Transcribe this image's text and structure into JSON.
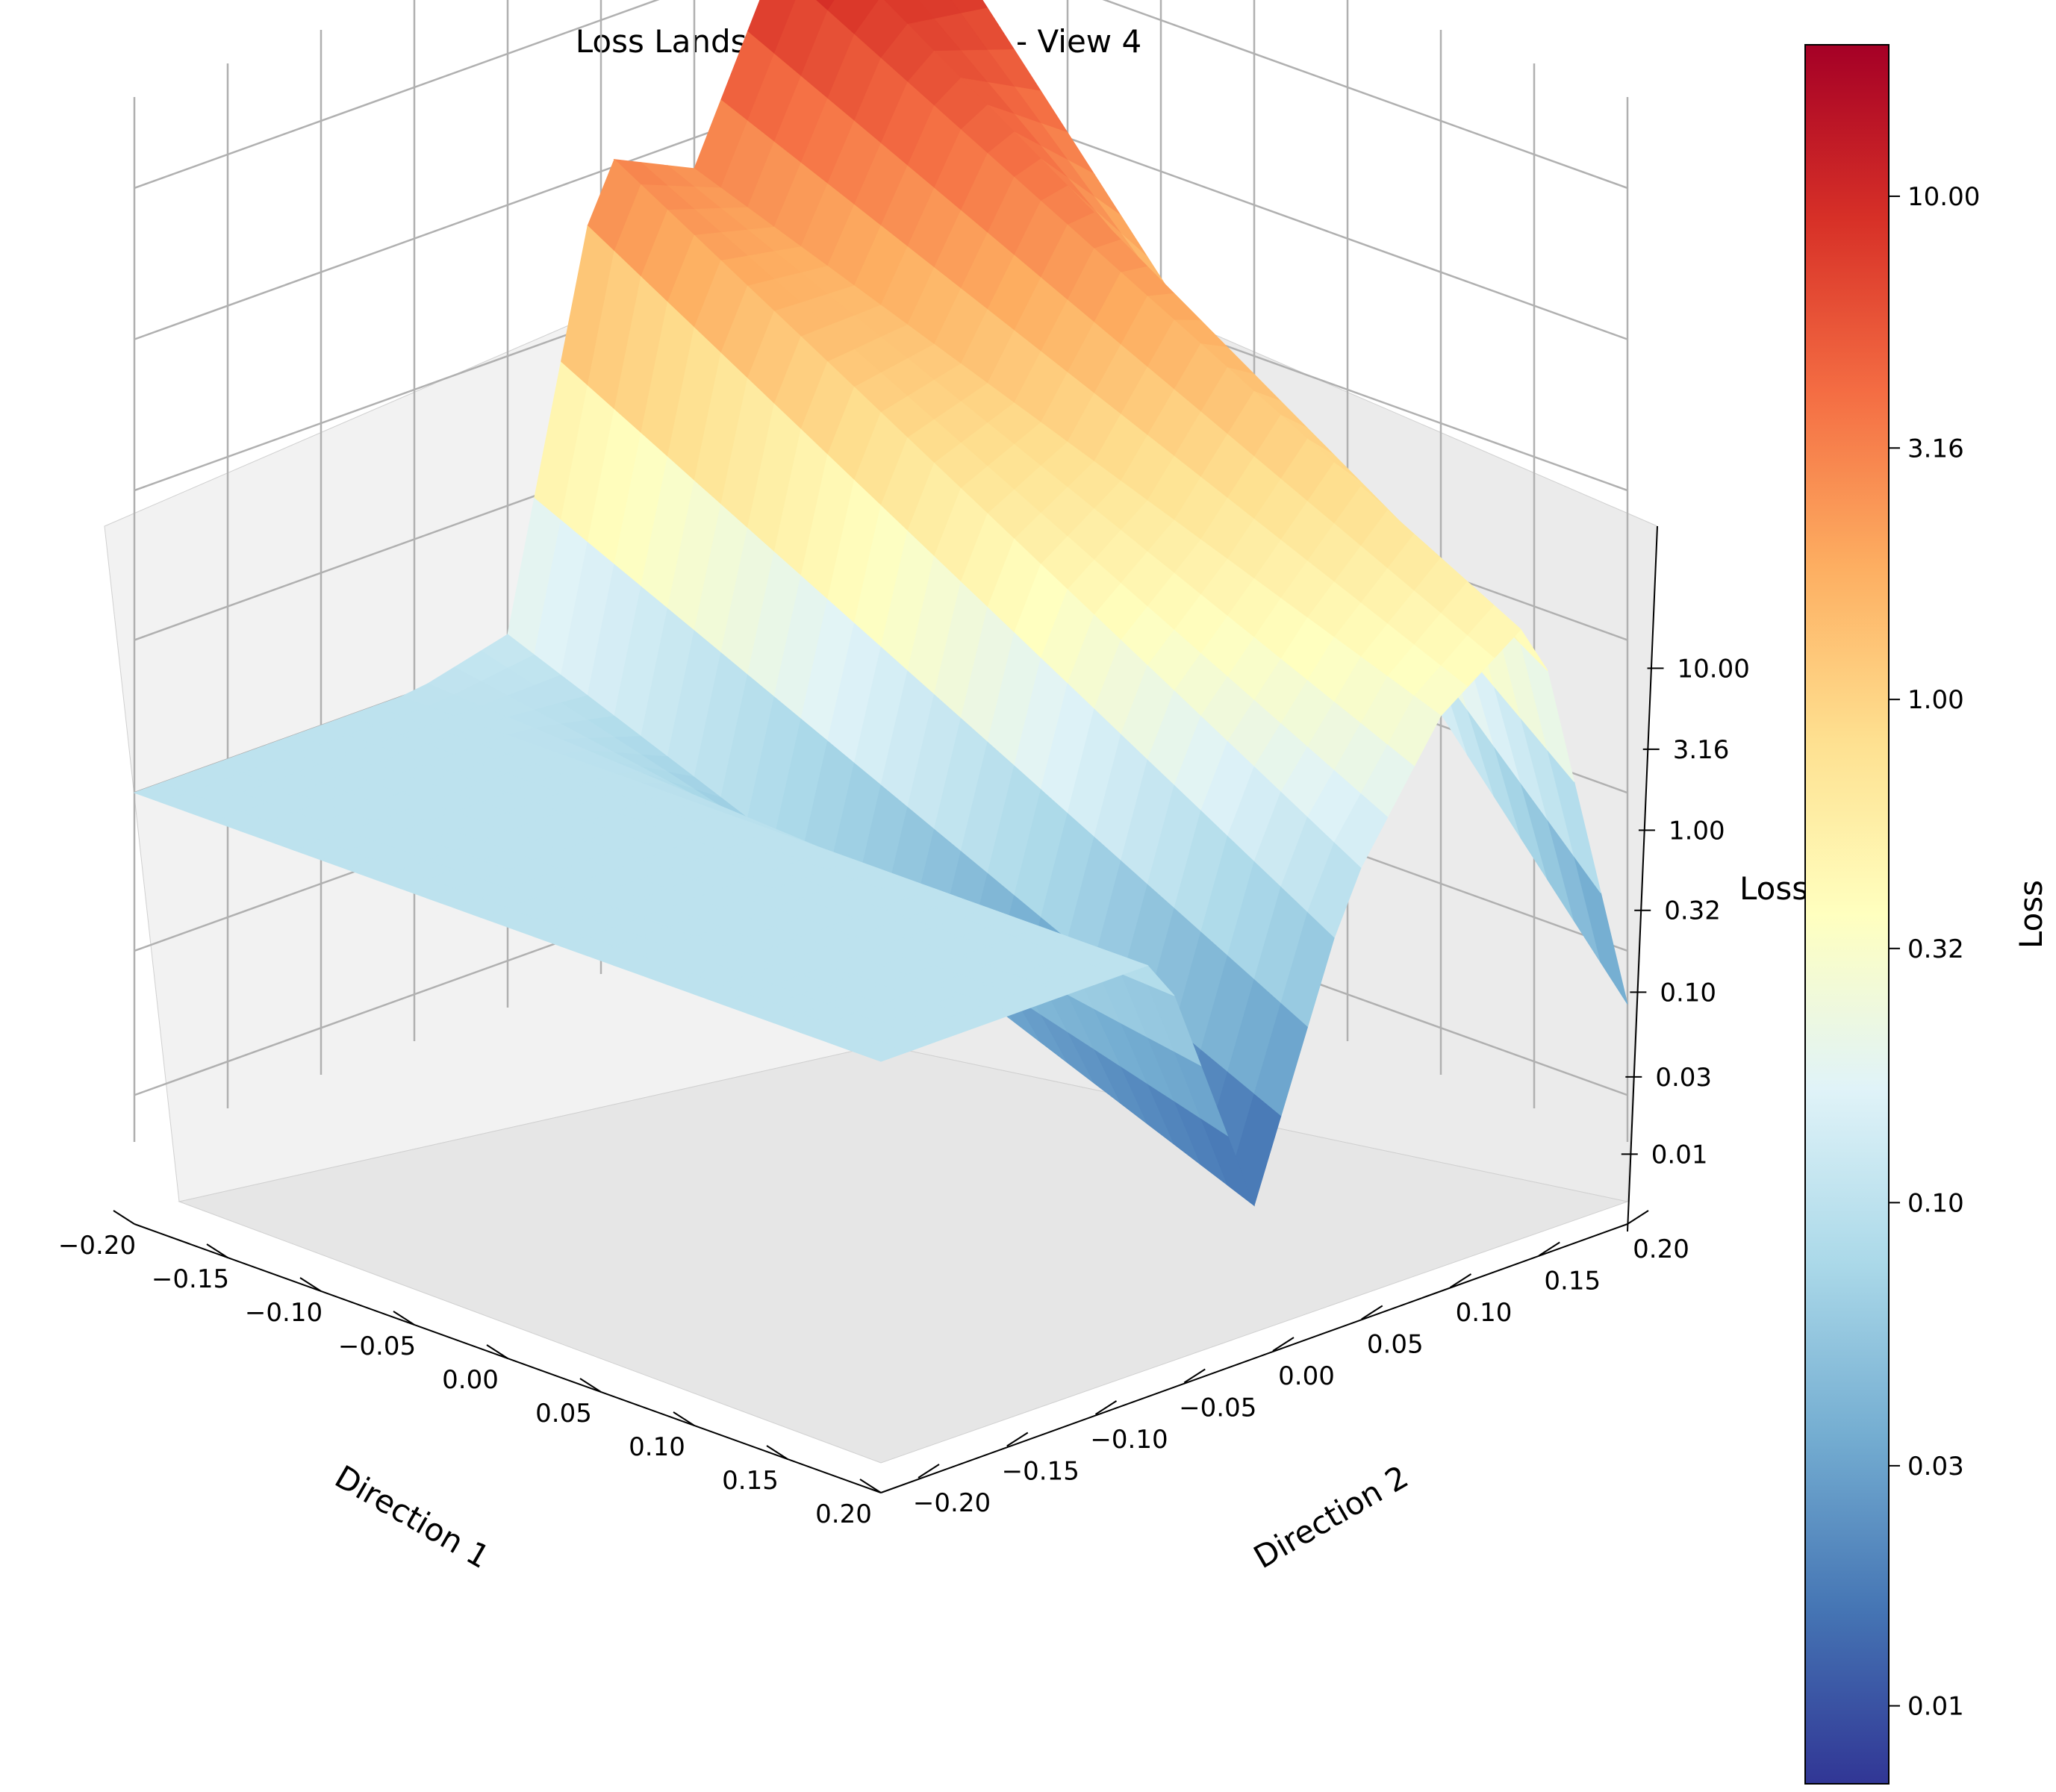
{
  "chart_data": {
    "type": "surface-3d",
    "title": "Loss Landscape 3D Surface - View 4",
    "xlabel": "Direction 1",
    "ylabel": "Direction 2",
    "zlabel": "Loss",
    "colorbar_label": "Loss",
    "colormap": "RdYlBu_r",
    "z_scale": "log",
    "x_ticks": [
      "−0.20",
      "−0.15",
      "−0.10",
      "−0.05",
      "0.00",
      "0.05",
      "0.10",
      "0.15",
      "0.20"
    ],
    "y_ticks": [
      "−0.20",
      "−0.15",
      "−0.10",
      "−0.05",
      "0.00",
      "0.05",
      "0.10",
      "0.15",
      "0.20"
    ],
    "z_ticks": [
      "0.01",
      "0.03",
      "0.10",
      "0.32",
      "1.00",
      "3.16",
      "10.00"
    ],
    "colorbar_ticks": [
      "0.01",
      "0.03",
      "0.10",
      "0.32",
      "1.00",
      "3.16",
      "10.00"
    ],
    "x_range": [
      -0.2,
      0.2
    ],
    "y_range": [
      -0.2,
      0.2
    ],
    "z_range": [
      0.007,
      20
    ],
    "colorbar_range": [
      0.007,
      20
    ],
    "surface_profile": {
      "direction_2_values": [
        -0.2,
        -0.15,
        -0.1,
        -0.05,
        0.0,
        0.05,
        0.1,
        0.15,
        0.2
      ],
      "loss_at_direction_1_min": [
        0.1,
        0.1,
        0.1,
        0.1,
        0.12,
        3.5,
        2.5,
        12,
        18
      ],
      "loss_at_direction_1_max": [
        0.1,
        0.1,
        0.1,
        0.1,
        0.012,
        0.1,
        0.3,
        0.5,
        0.02
      ]
    },
    "colors": {
      "low": "#313695",
      "mid": "#ffffbf",
      "high": "#a50026"
    }
  }
}
